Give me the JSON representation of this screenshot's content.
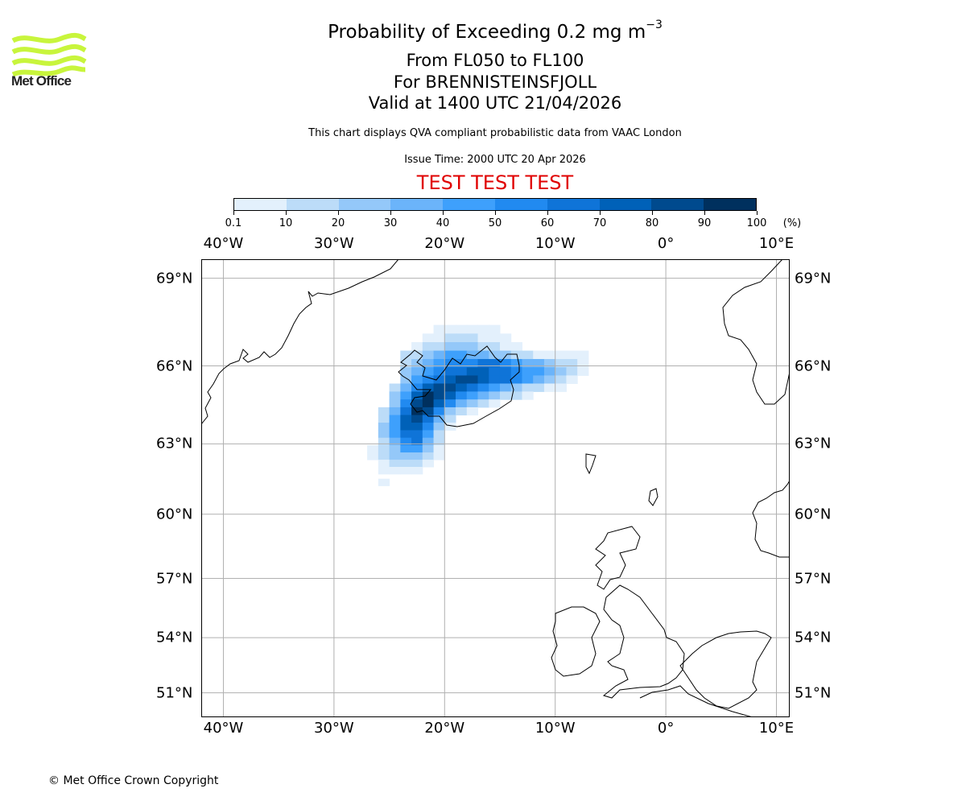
{
  "header": {
    "title_main": "Probability of Exceeding 0.2 mg m",
    "title_superscript": "−3",
    "level_range": "From FL050 to FL100",
    "volcano": "For BRENNISTEINSFJOLL",
    "valid_time": "Valid at 1400 UTC 21/04/2026",
    "description": "This chart displays QVA compliant probabilistic data from VAAC London",
    "issue_time": "Issue Time: 2000 UTC 20 Apr 2026",
    "test_banner": "TEST TEST TEST"
  },
  "logo": {
    "text": "Met Office",
    "brand_color": "#c8f53c"
  },
  "colorbar": {
    "unit_label": "(%)",
    "tick_labels": [
      "0.1",
      "10",
      "20",
      "30",
      "40",
      "50",
      "60",
      "70",
      "80",
      "90",
      "100"
    ],
    "colors": [
      "#e3f0fc",
      "#bcdcf8",
      "#94c8f9",
      "#6bb4fa",
      "#3ea0fc",
      "#218af0",
      "#0f74d8",
      "#0061b8",
      "#004a8e",
      "#00305e"
    ]
  },
  "map": {
    "lon_range": [
      -42,
      11.2
    ],
    "lat_range": [
      49.6,
      69.6
    ],
    "lon_ticks": [
      {
        "value": -40,
        "label": "40°W"
      },
      {
        "value": -30,
        "label": "30°W"
      },
      {
        "value": -20,
        "label": "20°W"
      },
      {
        "value": -10,
        "label": "10°W"
      },
      {
        "value": 0,
        "label": "0°"
      },
      {
        "value": 10,
        "label": "10°E"
      }
    ],
    "lat_ticks": [
      {
        "value": 69,
        "label": "69°N"
      },
      {
        "value": 66,
        "label": "66°N"
      },
      {
        "value": 63,
        "label": "63°N"
      },
      {
        "value": 60,
        "label": "60°N"
      },
      {
        "value": 57,
        "label": "57°N"
      },
      {
        "value": 54,
        "label": "54°N"
      },
      {
        "value": 51,
        "label": "51°N"
      }
    ],
    "grid": true,
    "plume_cells_note": "probability bins 1-10 correspond to colorbar segments",
    "plume_cells": [
      [
        -20.5,
        67.3,
        1
      ],
      [
        -19.5,
        67.3,
        1
      ],
      [
        -18.5,
        67.3,
        1
      ],
      [
        -17.5,
        67.3,
        1
      ],
      [
        -16.5,
        67.3,
        1
      ],
      [
        -15.5,
        67.3,
        1
      ],
      [
        -21.5,
        67.0,
        1
      ],
      [
        -20.5,
        67.0,
        1
      ],
      [
        -19.5,
        67.0,
        2
      ],
      [
        -18.5,
        67.0,
        2
      ],
      [
        -17.5,
        67.0,
        2
      ],
      [
        -16.5,
        67.0,
        1
      ],
      [
        -15.5,
        67.0,
        1
      ],
      [
        -14.5,
        67.0,
        1
      ],
      [
        -22.5,
        66.7,
        1
      ],
      [
        -21.5,
        66.7,
        2
      ],
      [
        -20.5,
        66.7,
        2
      ],
      [
        -19.5,
        66.7,
        3
      ],
      [
        -18.5,
        66.7,
        3
      ],
      [
        -17.5,
        66.7,
        3
      ],
      [
        -16.5,
        66.7,
        2
      ],
      [
        -15.5,
        66.7,
        2
      ],
      [
        -14.5,
        66.7,
        1
      ],
      [
        -13.5,
        66.7,
        1
      ],
      [
        -23.5,
        66.4,
        2
      ],
      [
        -22.5,
        66.4,
        2
      ],
      [
        -21.5,
        66.4,
        3
      ],
      [
        -20.5,
        66.4,
        4
      ],
      [
        -19.5,
        66.4,
        5
      ],
      [
        -18.5,
        66.4,
        5
      ],
      [
        -17.5,
        66.4,
        4
      ],
      [
        -16.5,
        66.4,
        4
      ],
      [
        -15.5,
        66.4,
        3
      ],
      [
        -14.5,
        66.4,
        3
      ],
      [
        -13.5,
        66.4,
        2
      ],
      [
        -12.5,
        66.4,
        2
      ],
      [
        -11.5,
        66.4,
        1
      ],
      [
        -10.5,
        66.4,
        1
      ],
      [
        -9.5,
        66.4,
        1
      ],
      [
        -8.5,
        66.4,
        1
      ],
      [
        -7.5,
        66.4,
        1
      ],
      [
        -23.5,
        66.1,
        2
      ],
      [
        -22.5,
        66.1,
        3
      ],
      [
        -21.5,
        66.1,
        4
      ],
      [
        -20.5,
        66.1,
        5
      ],
      [
        -19.5,
        66.1,
        6
      ],
      [
        -18.5,
        66.1,
        6
      ],
      [
        -17.5,
        66.1,
        6
      ],
      [
        -16.5,
        66.1,
        7
      ],
      [
        -15.5,
        66.1,
        7
      ],
      [
        -14.5,
        66.1,
        6
      ],
      [
        -13.5,
        66.1,
        5
      ],
      [
        -12.5,
        66.1,
        4
      ],
      [
        -11.5,
        66.1,
        4
      ],
      [
        -10.5,
        66.1,
        3
      ],
      [
        -9.5,
        66.1,
        2
      ],
      [
        -8.5,
        66.1,
        2
      ],
      [
        -7.5,
        66.1,
        1
      ],
      [
        -23.5,
        65.8,
        3
      ],
      [
        -22.5,
        65.8,
        4
      ],
      [
        -21.5,
        65.8,
        5
      ],
      [
        -20.5,
        65.8,
        6
      ],
      [
        -19.5,
        65.8,
        7
      ],
      [
        -18.5,
        65.8,
        7
      ],
      [
        -17.5,
        65.8,
        8
      ],
      [
        -16.5,
        65.8,
        8
      ],
      [
        -15.5,
        65.8,
        7
      ],
      [
        -14.5,
        65.8,
        7
      ],
      [
        -13.5,
        65.8,
        6
      ],
      [
        -12.5,
        65.8,
        5
      ],
      [
        -11.5,
        65.8,
        5
      ],
      [
        -10.5,
        65.8,
        4
      ],
      [
        -9.5,
        65.8,
        3
      ],
      [
        -8.5,
        65.8,
        2
      ],
      [
        -7.5,
        65.8,
        1
      ],
      [
        -23.5,
        65.5,
        3
      ],
      [
        -22.5,
        65.5,
        5
      ],
      [
        -21.5,
        65.5,
        6
      ],
      [
        -20.5,
        65.5,
        7
      ],
      [
        -19.5,
        65.5,
        8
      ],
      [
        -18.5,
        65.5,
        9
      ],
      [
        -17.5,
        65.5,
        9
      ],
      [
        -16.5,
        65.5,
        8
      ],
      [
        -15.5,
        65.5,
        7
      ],
      [
        -14.5,
        65.5,
        7
      ],
      [
        -13.5,
        65.5,
        6
      ],
      [
        -12.5,
        65.5,
        5
      ],
      [
        -11.5,
        65.5,
        4
      ],
      [
        -10.5,
        65.5,
        3
      ],
      [
        -9.5,
        65.5,
        2
      ],
      [
        -8.5,
        65.5,
        1
      ],
      [
        -24.5,
        65.2,
        2
      ],
      [
        -23.5,
        65.2,
        4
      ],
      [
        -22.5,
        65.2,
        6
      ],
      [
        -21.5,
        65.2,
        8
      ],
      [
        -20.5,
        65.2,
        9
      ],
      [
        -19.5,
        65.2,
        9
      ],
      [
        -18.5,
        65.2,
        8
      ],
      [
        -17.5,
        65.2,
        7
      ],
      [
        -16.5,
        65.2,
        6
      ],
      [
        -15.5,
        65.2,
        5
      ],
      [
        -14.5,
        65.2,
        4
      ],
      [
        -13.5,
        65.2,
        3
      ],
      [
        -12.5,
        65.2,
        2
      ],
      [
        -11.5,
        65.2,
        2
      ],
      [
        -10.5,
        65.2,
        1
      ],
      [
        -9.5,
        65.2,
        1
      ],
      [
        -24.5,
        64.9,
        3
      ],
      [
        -23.5,
        64.9,
        5
      ],
      [
        -22.5,
        64.9,
        8
      ],
      [
        -21.5,
        64.9,
        10
      ],
      [
        -20.5,
        64.9,
        9
      ],
      [
        -19.5,
        64.9,
        8
      ],
      [
        -18.5,
        64.9,
        6
      ],
      [
        -17.5,
        64.9,
        5
      ],
      [
        -16.5,
        64.9,
        4
      ],
      [
        -15.5,
        64.9,
        3
      ],
      [
        -14.5,
        64.9,
        2
      ],
      [
        -13.5,
        64.9,
        2
      ],
      [
        -12.5,
        64.9,
        1
      ],
      [
        -24.5,
        64.6,
        3
      ],
      [
        -23.5,
        64.6,
        6
      ],
      [
        -22.5,
        64.6,
        9
      ],
      [
        -21.5,
        64.6,
        10
      ],
      [
        -20.5,
        64.6,
        8
      ],
      [
        -19.5,
        64.6,
        6
      ],
      [
        -18.5,
        64.6,
        4
      ],
      [
        -17.5,
        64.6,
        3
      ],
      [
        -16.5,
        64.6,
        2
      ],
      [
        -15.5,
        64.6,
        1
      ],
      [
        -25.5,
        64.3,
        2
      ],
      [
        -24.5,
        64.3,
        4
      ],
      [
        -23.5,
        64.3,
        7
      ],
      [
        -22.5,
        64.3,
        10
      ],
      [
        -21.5,
        64.3,
        9
      ],
      [
        -20.5,
        64.3,
        6
      ],
      [
        -19.5,
        64.3,
        3
      ],
      [
        -18.5,
        64.3,
        2
      ],
      [
        -17.5,
        64.3,
        1
      ],
      [
        -25.5,
        64.0,
        2
      ],
      [
        -24.5,
        64.0,
        5
      ],
      [
        -23.5,
        64.0,
        8
      ],
      [
        -22.5,
        64.0,
        9
      ],
      [
        -21.5,
        64.0,
        7
      ],
      [
        -20.5,
        64.0,
        4
      ],
      [
        -19.5,
        64.0,
        2
      ],
      [
        -25.5,
        63.7,
        3
      ],
      [
        -24.5,
        63.7,
        5
      ],
      [
        -23.5,
        63.7,
        8
      ],
      [
        -22.5,
        63.7,
        8
      ],
      [
        -21.5,
        63.7,
        6
      ],
      [
        -20.5,
        63.7,
        3
      ],
      [
        -19.5,
        63.7,
        1
      ],
      [
        -25.5,
        63.4,
        3
      ],
      [
        -24.5,
        63.4,
        5
      ],
      [
        -23.5,
        63.4,
        7
      ],
      [
        -22.5,
        63.4,
        7
      ],
      [
        -21.5,
        63.4,
        5
      ],
      [
        -20.5,
        63.4,
        2
      ],
      [
        -25.5,
        63.1,
        2
      ],
      [
        -24.5,
        63.1,
        4
      ],
      [
        -23.5,
        63.1,
        6
      ],
      [
        -22.5,
        63.1,
        7
      ],
      [
        -21.5,
        63.1,
        4
      ],
      [
        -20.5,
        63.1,
        2
      ],
      [
        -26.5,
        62.8,
        1
      ],
      [
        -25.5,
        62.8,
        2
      ],
      [
        -24.5,
        62.8,
        3
      ],
      [
        -23.5,
        62.8,
        5
      ],
      [
        -22.5,
        62.8,
        5
      ],
      [
        -21.5,
        62.8,
        3
      ],
      [
        -20.5,
        62.8,
        1
      ],
      [
        -26.5,
        62.5,
        1
      ],
      [
        -25.5,
        62.5,
        2
      ],
      [
        -24.5,
        62.5,
        3
      ],
      [
        -23.5,
        62.5,
        3
      ],
      [
        -22.5,
        62.5,
        3
      ],
      [
        -21.5,
        62.5,
        2
      ],
      [
        -20.5,
        62.5,
        1
      ],
      [
        -25.5,
        62.2,
        1
      ],
      [
        -24.5,
        62.2,
        2
      ],
      [
        -23.5,
        62.2,
        2
      ],
      [
        -22.5,
        62.2,
        2
      ],
      [
        -21.5,
        62.2,
        1
      ],
      [
        -25.5,
        61.9,
        1
      ],
      [
        -24.5,
        61.9,
        1
      ],
      [
        -23.5,
        61.9,
        1
      ],
      [
        -22.5,
        61.9,
        1
      ],
      [
        -25.5,
        61.4,
        1
      ]
    ]
  },
  "footer": {
    "copyright": "© Met Office Crown Copyright"
  }
}
